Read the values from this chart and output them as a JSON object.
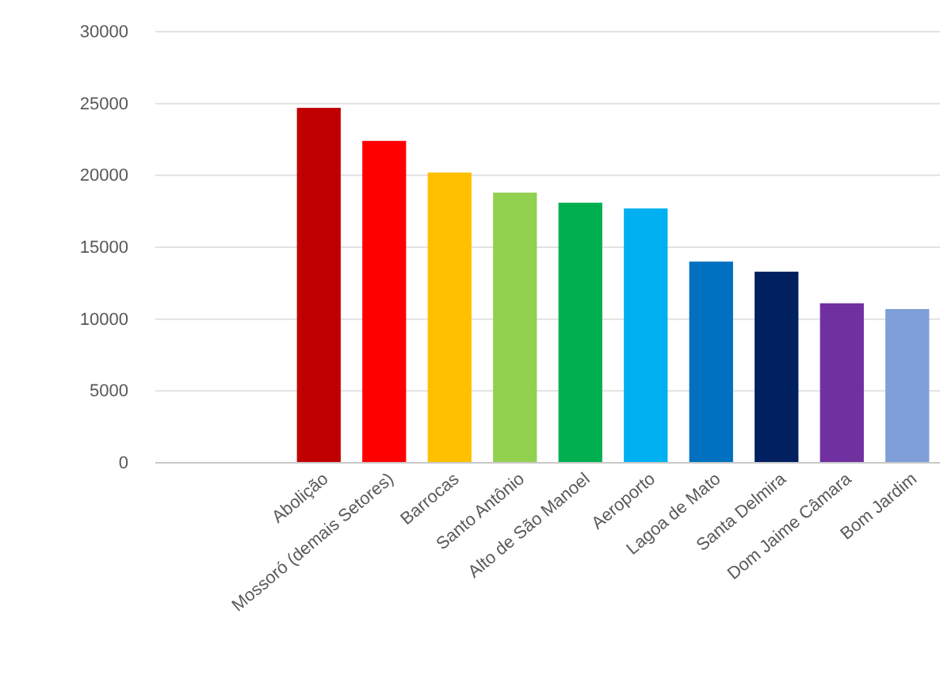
{
  "chart_data": {
    "type": "bar",
    "categories": [
      null,
      null,
      "Abolição",
      "Mossoró (demais Setores)",
      "Barrocas",
      "Santo Antônio",
      "Alto de São Manoel",
      "Aeroporto",
      "Lagoa de Mato",
      "Santa Delmira",
      "Dom Jaime Câmara",
      "Bom Jardim"
    ],
    "values": [
      null,
      null,
      24700,
      22400,
      20200,
      18800,
      18100,
      17700,
      14000,
      13300,
      11100,
      10700
    ],
    "colors": [
      null,
      null,
      "#c00000",
      "#ff0000",
      "#ffc000",
      "#92d050",
      "#00b050",
      "#00b0f0",
      "#0070c0",
      "#002060",
      "#7030a0",
      "#7f9fd8"
    ],
    "ylim": [
      0,
      30000
    ],
    "yticks": [
      0,
      5000,
      10000,
      15000,
      20000,
      25000,
      30000
    ],
    "grid": "y"
  }
}
